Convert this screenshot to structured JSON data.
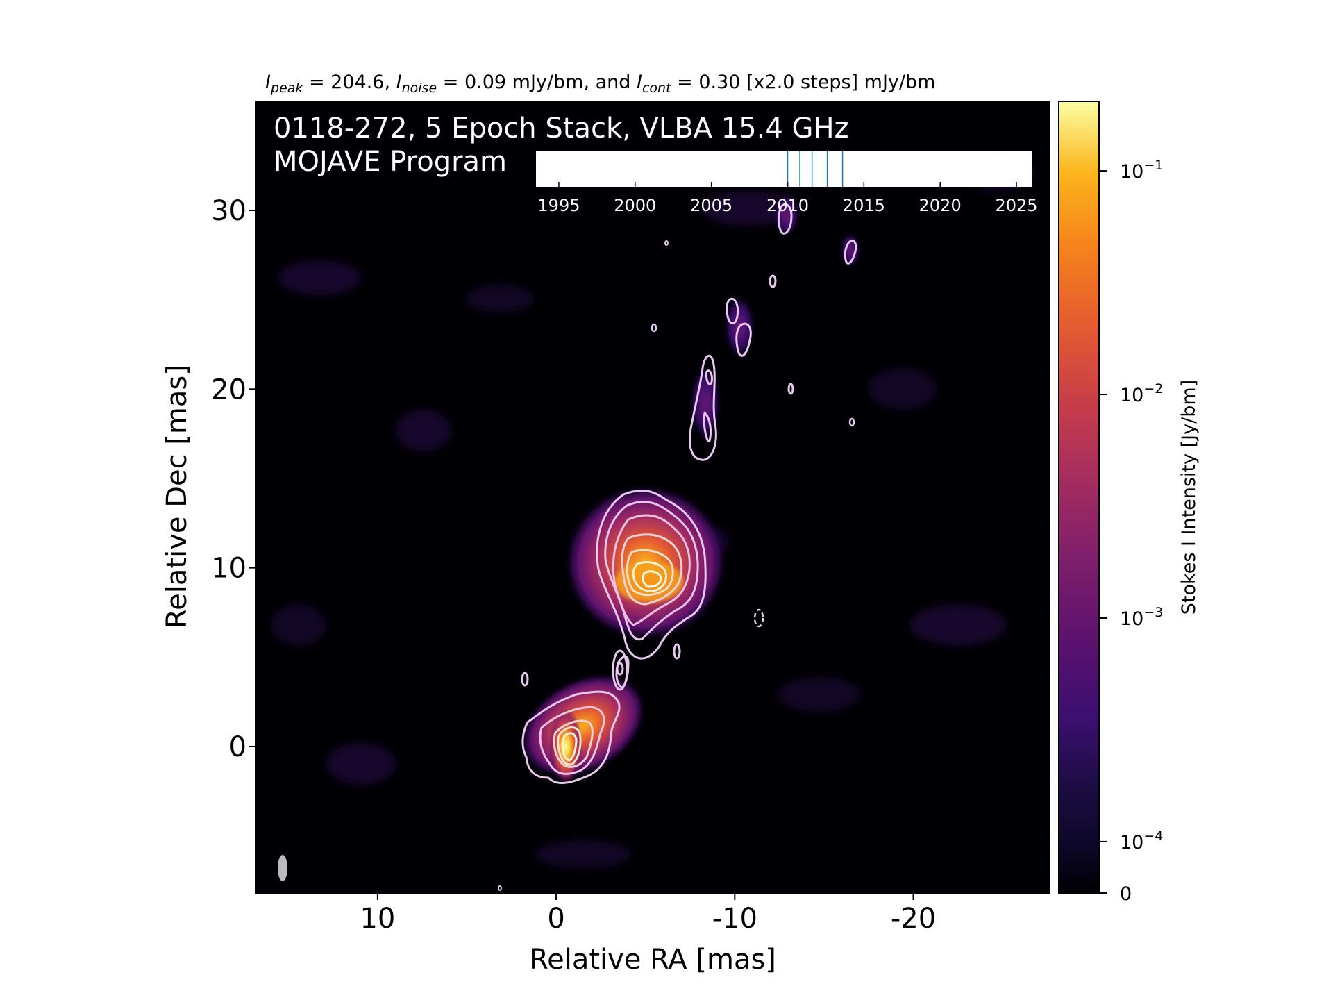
{
  "chart_data": {
    "type": "heatmap",
    "header": {
      "peak_label": "peak",
      "peak_value": "204.6",
      "noise_label": "noise",
      "noise_value": "0.09",
      "cont_label": "cont",
      "cont_value": "0.30",
      "sep1": ", ",
      "sep2": " mJy/bm, and ",
      "eq": " = ",
      "tail": " [x2.0 steps] mJy/bm"
    },
    "title_line1": "0118-272, 5 Epoch Stack, VLBA 15.4 GHz",
    "title_line2": "MOJAVE Program",
    "xlabel": "Relative RA [mas]",
    "ylabel": "Relative Dec [mas]",
    "xlim": [
      16.8,
      -27.6
    ],
    "ylim": [
      -8.2,
      36.1
    ],
    "xticks": [
      10,
      0,
      -10,
      -20
    ],
    "yticks": [
      0,
      10,
      20,
      30
    ],
    "colorbar": {
      "label": "Stokes I Intensity [Jy/bm]",
      "scale": "symlog",
      "range": [
        0,
        0.2046
      ],
      "ticks": [
        {
          "value": 0,
          "base": "0",
          "exp": ""
        },
        {
          "value": 0.0001,
          "base": "10",
          "exp": "−4"
        },
        {
          "value": 0.001,
          "base": "10",
          "exp": "−3"
        },
        {
          "value": 0.01,
          "base": "10",
          "exp": "−2"
        },
        {
          "value": 0.1,
          "base": "10",
          "exp": "−1"
        }
      ],
      "colormap": "inferno"
    },
    "epoch_timeline": {
      "ticks": [
        "1995",
        "2000",
        "2005",
        "2010",
        "2015",
        "2020",
        "2025"
      ],
      "range": [
        1993.5,
        2026
      ],
      "epochs": [
        2010.0,
        2010.8,
        2011.6,
        2012.6,
        2013.6
      ]
    },
    "components": [
      {
        "ra": 0.0,
        "dec": 0.0,
        "flux_mjy": 204.6
      },
      {
        "ra": -4.5,
        "dec": 9.2,
        "flux_mjy": 40
      },
      {
        "ra": -7.8,
        "dec": 18.0,
        "flux_mjy": 1.5
      },
      {
        "ra": -9.9,
        "dec": 23.5,
        "flux_mjy": 0.8
      },
      {
        "ra": -12.4,
        "dec": 29.7,
        "flux_mjy": 0.6
      },
      {
        "ra": -16.0,
        "dec": 27.8,
        "flux_mjy": 0.6
      }
    ],
    "contour_base_mjy": 0.3,
    "contour_step": 2.0,
    "grid": false
  }
}
